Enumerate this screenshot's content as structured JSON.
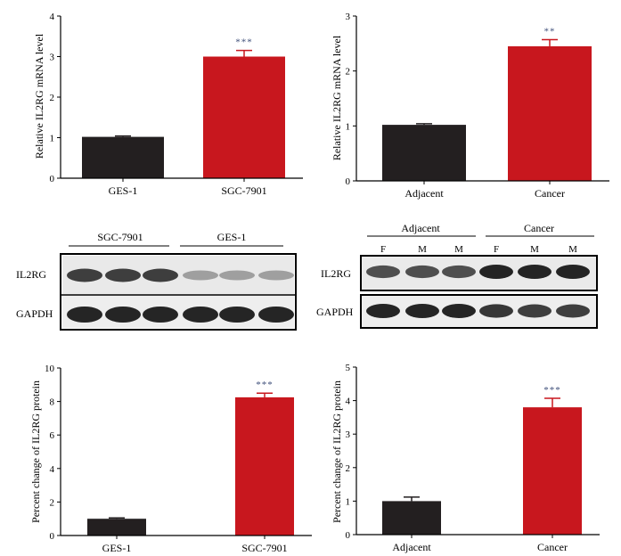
{
  "colors": {
    "control": "#231f20",
    "treatment": "#c8171e",
    "stars": "#3f4f7a"
  },
  "chart_data": [
    {
      "id": "panel_a",
      "type": "bar",
      "categories": [
        "GES-1",
        "SGC-7901"
      ],
      "values": [
        1.02,
        3.0
      ],
      "errors": [
        0.02,
        0.15
      ],
      "significance": [
        "",
        "***"
      ],
      "xlabel": "",
      "ylabel": "Relative IL2RG mRNA level",
      "ylim": [
        0,
        4
      ],
      "yticks": [
        "0",
        "1",
        "2",
        "3",
        "4"
      ],
      "grid": false
    },
    {
      "id": "panel_b",
      "type": "bar",
      "categories": [
        "Adjacent",
        "Cancer"
      ],
      "values": [
        1.02,
        2.45
      ],
      "errors": [
        0.02,
        0.12
      ],
      "significance": [
        "",
        "**"
      ],
      "xlabel": "",
      "ylabel": "Relative IL2RG mRNA level",
      "ylim": [
        0,
        3
      ],
      "yticks": [
        "0",
        "1",
        "2",
        "3"
      ],
      "grid": false
    },
    {
      "id": "panel_c",
      "type": "bar",
      "categories": [
        "GES-1",
        "SGC-7901"
      ],
      "values": [
        1.0,
        8.25
      ],
      "errors": [
        0.05,
        0.25
      ],
      "significance": [
        "",
        "***"
      ],
      "xlabel": "",
      "ylabel": "Percent change of IL2RG protein",
      "ylim": [
        0,
        10
      ],
      "yticks": [
        "0",
        "2",
        "4",
        "6",
        "8",
        "10"
      ],
      "grid": false
    },
    {
      "id": "panel_d",
      "type": "bar",
      "categories": [
        "Adjacent",
        "Cancer"
      ],
      "values": [
        1.0,
        3.8
      ],
      "errors": [
        0.12,
        0.27
      ],
      "significance": [
        "",
        "***"
      ],
      "xlabel": "",
      "ylabel": "Percent change of IL2RG protein",
      "ylim": [
        0,
        5
      ],
      "yticks": [
        "0",
        "1",
        "2",
        "3",
        "4",
        "5"
      ],
      "grid": false
    }
  ],
  "blots": {
    "left": {
      "groups": [
        "SGC-7901",
        "GES-1"
      ],
      "rows": [
        "IL2RG",
        "GAPDH"
      ],
      "il2rg_intensity": [
        0.85,
        0.85,
        0.85,
        0.3,
        0.3,
        0.3
      ],
      "gapdh_intensity": [
        1.0,
        1.0,
        1.0,
        1.0,
        1.0,
        1.0
      ]
    },
    "right": {
      "groups": [
        "Adjacent",
        "Cancer"
      ],
      "lane_labels": [
        "F",
        "M",
        "M",
        "F",
        "M",
        "M"
      ],
      "rows": [
        "IL2RG",
        "GAPDH"
      ],
      "il2rg_intensity": [
        0.75,
        0.75,
        0.75,
        1.0,
        1.0,
        1.0
      ],
      "gapdh_intensity": [
        1.0,
        1.0,
        1.0,
        0.9,
        0.85,
        0.85
      ]
    }
  }
}
